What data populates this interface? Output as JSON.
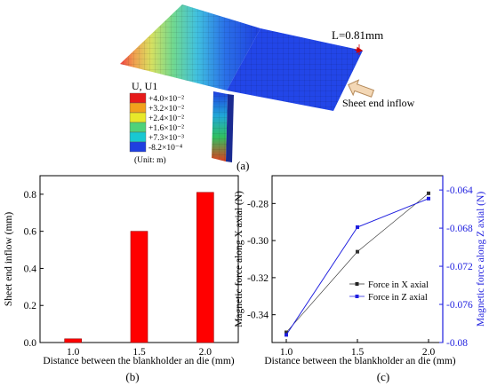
{
  "panel_a": {
    "contour_title": "U, U1",
    "legend_entries": [
      "+4.0×10⁻²",
      "+3.2×10⁻²",
      "+2.4×10⁻²",
      "+1.6×10⁻²",
      "+7.3×10⁻³",
      "-8.2×10⁻⁴"
    ],
    "legend_colors": [
      "#e61a1a",
      "#f2a01c",
      "#e8e82a",
      "#4fd27a",
      "#18c8d2",
      "#1f3fe0"
    ],
    "unit": "(Unit: m)",
    "dimension_label": "L=0.81mm",
    "inflow_label": "Sheet end inflow",
    "caption": "(a)"
  },
  "panel_b": {
    "caption": "(b)"
  },
  "panel_c": {
    "caption": "(c)"
  },
  "chart_data": [
    {
      "type": "bar",
      "categories": [
        "1.0",
        "1.5",
        "2.0"
      ],
      "values": [
        0.02,
        0.6,
        0.81
      ],
      "xlabel": "Distance between the blankholder an die (mm)",
      "ylabel": "Sheet end inflow (mm)",
      "ylim": [
        0.0,
        0.9
      ],
      "yticks": [
        "0.0",
        "0.2",
        "0.4",
        "0.6",
        "0.8"
      ],
      "color": "#ff0000"
    },
    {
      "type": "line",
      "x": [
        1.0,
        1.5,
        2.0
      ],
      "xticks": [
        "1.0",
        "1.5",
        "2.0"
      ],
      "xlim": [
        0.9,
        2.1
      ],
      "xlabel": "Distance between the blankholder an die (mm)",
      "series": [
        {
          "name": "Force in X axial",
          "axis": "left",
          "values": [
            -0.3495,
            -0.306,
            -0.2745
          ],
          "color": "#333333"
        },
        {
          "name": "Force in Z axial",
          "axis": "right",
          "values": [
            -0.0792,
            -0.0679,
            -0.0649
          ],
          "color": "#1f1fdf"
        }
      ],
      "ylabel_left": "Magnetic force along X axial (N)",
      "ylim_left": [
        -0.355,
        -0.265
      ],
      "yticks_left": [
        "-0.28",
        "-0.30",
        "-0.32",
        "-0.34"
      ],
      "ylabel_right": "Magnetic force along Z axial (N)",
      "ylim_right": [
        -0.08,
        -0.0625
      ],
      "yticks_right": [
        "-0.064",
        "-0.068",
        "-0.072",
        "-0.076",
        "-0.08"
      ],
      "legend_position": "center-right"
    }
  ]
}
